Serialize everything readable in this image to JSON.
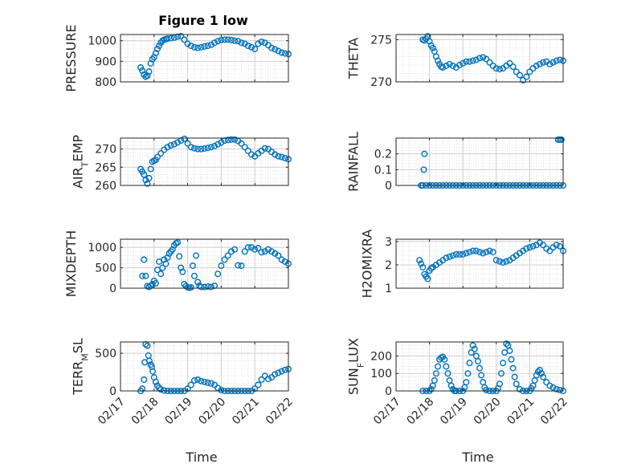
{
  "figure": {
    "title": "Figure 1 low",
    "xlabel": "Time",
    "marker_color": "#0072BD",
    "x_ticks": [
      "02/17",
      "02/18",
      "02/19",
      "02/20",
      "02/21",
      "02/22"
    ]
  },
  "chart_data": [
    {
      "type": "scatter",
      "name": "PRESSURE",
      "ylabel": "PRESSURE",
      "title": "Figure 1 low",
      "xlim": [
        0,
        5
      ],
      "ylim": [
        800,
        1030
      ],
      "yticks": [
        800,
        900,
        1000
      ],
      "x": [
        0.6,
        0.65,
        0.7,
        0.75,
        0.8,
        0.85,
        0.9,
        0.95,
        1.0,
        1.05,
        1.1,
        1.15,
        1.2,
        1.25,
        1.3,
        1.35,
        1.4,
        1.5,
        1.6,
        1.7,
        1.8,
        1.9,
        2.0,
        2.1,
        2.2,
        2.3,
        2.4,
        2.5,
        2.6,
        2.7,
        2.8,
        2.9,
        3.0,
        3.1,
        3.2,
        3.3,
        3.4,
        3.5,
        3.6,
        3.7,
        3.8,
        3.9,
        4.0,
        4.1,
        4.2,
        4.3,
        4.4,
        4.5,
        4.6,
        4.7,
        4.8,
        4.9,
        5.0
      ],
      "y": [
        870,
        855,
        835,
        825,
        830,
        850,
        890,
        910,
        920,
        940,
        960,
        975,
        990,
        1000,
        1005,
        1008,
        1010,
        1012,
        1015,
        1020,
        1022,
        1005,
        985,
        975,
        968,
        965,
        968,
        972,
        975,
        980,
        990,
        998,
        1003,
        1005,
        1005,
        1003,
        1000,
        998,
        990,
        985,
        975,
        968,
        960,
        985,
        995,
        990,
        978,
        965,
        958,
        950,
        942,
        938,
        935
      ]
    },
    {
      "type": "scatter",
      "name": "THETA",
      "ylabel": "THETA",
      "xlim": [
        0,
        5
      ],
      "ylim": [
        270,
        275.6
      ],
      "yticks": [
        270,
        275
      ],
      "x": [
        0.8,
        0.85,
        0.9,
        0.95,
        1.0,
        1.05,
        1.1,
        1.15,
        1.2,
        1.25,
        1.3,
        1.35,
        1.4,
        1.5,
        1.6,
        1.7,
        1.8,
        1.9,
        2.0,
        2.1,
        2.2,
        2.3,
        2.4,
        2.5,
        2.6,
        2.7,
        2.8,
        2.9,
        3.0,
        3.1,
        3.2,
        3.3,
        3.4,
        3.5,
        3.6,
        3.7,
        3.8,
        3.9,
        4.0,
        4.1,
        4.2,
        4.3,
        4.4,
        4.5,
        4.6,
        4.7,
        4.8,
        4.9,
        5.0
      ],
      "y": [
        275,
        274.9,
        275.1,
        275.4,
        274.8,
        274.3,
        274.0,
        273.6,
        273.0,
        272.5,
        272.1,
        271.8,
        271.7,
        271.9,
        272.1,
        271.9,
        271.7,
        272.0,
        272.2,
        272.4,
        272.4,
        272.5,
        272.6,
        272.8,
        272.9,
        272.7,
        272.3,
        271.9,
        271.6,
        271.5,
        271.6,
        271.9,
        272.2,
        271.8,
        271.2,
        270.8,
        270.2,
        270.6,
        271.2,
        271.6,
        271.9,
        272.1,
        272.3,
        272.4,
        272.1,
        272.3,
        272.5,
        272.6,
        272.5
      ]
    },
    {
      "type": "scatter",
      "name": "AIR_TEMP",
      "ylabel": "AIR_TEMP",
      "xlim": [
        0,
        5
      ],
      "ylim": [
        260,
        273
      ],
      "yticks": [
        260,
        265,
        270
      ],
      "x": [
        0.6,
        0.65,
        0.7,
        0.75,
        0.8,
        0.85,
        0.9,
        0.95,
        1.0,
        1.05,
        1.1,
        1.2,
        1.3,
        1.4,
        1.5,
        1.6,
        1.7,
        1.8,
        1.9,
        2.0,
        2.1,
        2.2,
        2.3,
        2.4,
        2.5,
        2.6,
        2.7,
        2.8,
        2.9,
        3.0,
        3.1,
        3.2,
        3.3,
        3.4,
        3.5,
        3.6,
        3.7,
        3.8,
        3.9,
        4.0,
        4.1,
        4.2,
        4.3,
        4.4,
        4.5,
        4.6,
        4.7,
        4.8,
        4.9,
        5.0
      ],
      "y": [
        264.5,
        263.8,
        263.0,
        261.5,
        260.5,
        262.0,
        264.5,
        266.5,
        266.8,
        267.0,
        267.8,
        268.8,
        269.8,
        270.5,
        271.0,
        271.3,
        271.8,
        272.3,
        272.8,
        271.5,
        270.5,
        270.2,
        270.0,
        270.0,
        270.1,
        270.3,
        270.5,
        270.8,
        271.3,
        271.8,
        272.3,
        272.5,
        272.6,
        272.6,
        272.2,
        271.5,
        270.5,
        269.5,
        268.5,
        268.0,
        268.8,
        269.5,
        270.2,
        270.0,
        269.2,
        268.5,
        268.0,
        267.8,
        267.5,
        267.2
      ]
    },
    {
      "type": "scatter",
      "name": "RAINFALL",
      "ylabel": "RAINFALL",
      "xlim": [
        0,
        5
      ],
      "ylim": [
        0,
        0.3
      ],
      "yticks": [
        0,
        0.1,
        0.2
      ],
      "x": [
        0.75,
        0.8,
        0.9,
        1.0,
        1.1,
        1.2,
        1.3,
        1.4,
        1.5,
        1.6,
        1.7,
        1.8,
        1.9,
        2.0,
        2.1,
        2.2,
        2.3,
        2.4,
        2.5,
        2.6,
        2.7,
        2.8,
        2.9,
        3.0,
        3.1,
        3.2,
        3.3,
        3.4,
        3.5,
        3.6,
        3.7,
        3.8,
        3.9,
        4.0,
        4.1,
        4.2,
        4.3,
        4.4,
        4.5,
        4.6,
        4.7,
        4.8,
        4.9,
        5.0,
        4.85,
        4.9,
        4.95,
        0.83,
        0.85
      ],
      "y": [
        0,
        0,
        0,
        0,
        0,
        0,
        0,
        0,
        0,
        0,
        0,
        0,
        0,
        0,
        0,
        0,
        0,
        0,
        0,
        0,
        0,
        0,
        0,
        0,
        0,
        0,
        0,
        0,
        0,
        0,
        0,
        0,
        0,
        0,
        0,
        0,
        0,
        0,
        0,
        0,
        0,
        0,
        0,
        0,
        0.29,
        0.29,
        0.29,
        0.1,
        0.2
      ]
    },
    {
      "type": "scatter",
      "name": "MIXDEPTH",
      "ylabel": "MIXDEPTH",
      "xlim": [
        0,
        5
      ],
      "ylim": [
        0,
        1200
      ],
      "yticks": [
        0,
        500,
        1000
      ],
      "x": [
        0.65,
        0.7,
        0.75,
        0.8,
        0.85,
        0.9,
        0.95,
        1.0,
        1.05,
        1.1,
        1.15,
        1.2,
        1.25,
        1.3,
        1.35,
        1.4,
        1.45,
        1.5,
        1.55,
        1.6,
        1.65,
        1.7,
        1.75,
        1.8,
        1.85,
        1.9,
        1.95,
        2.0,
        2.05,
        2.1,
        2.15,
        2.2,
        2.25,
        2.3,
        2.35,
        2.4,
        2.5,
        2.6,
        2.7,
        2.8,
        2.9,
        3.0,
        3.1,
        3.2,
        3.3,
        3.4,
        3.5,
        3.6,
        3.7,
        3.8,
        3.9,
        4.0,
        4.1,
        4.2,
        4.3,
        4.4,
        4.5,
        4.6,
        4.7,
        4.8,
        4.9,
        5.0
      ],
      "y": [
        300,
        700,
        300,
        50,
        30,
        60,
        100,
        180,
        120,
        450,
        650,
        350,
        500,
        700,
        600,
        750,
        850,
        900,
        950,
        1050,
        1100,
        1120,
        780,
        500,
        400,
        100,
        50,
        20,
        10,
        20,
        550,
        300,
        800,
        150,
        60,
        30,
        30,
        40,
        30,
        60,
        350,
        550,
        700,
        800,
        900,
        950,
        560,
        550,
        900,
        1000,
        1000,
        950,
        980,
        880,
        900,
        950,
        900,
        850,
        800,
        700,
        650,
        600
      ]
    },
    {
      "type": "scatter",
      "name": "H2OMIXRA",
      "ylabel": "H2OMIXRA",
      "xlim": [
        0,
        5
      ],
      "ylim": [
        1,
        3.1
      ],
      "yticks": [
        1,
        2,
        3
      ],
      "x": [
        0.7,
        0.75,
        0.8,
        0.85,
        0.9,
        0.95,
        1.0,
        1.05,
        1.1,
        1.2,
        1.3,
        1.4,
        1.5,
        1.6,
        1.7,
        1.8,
        1.9,
        2.0,
        2.1,
        2.2,
        2.3,
        2.4,
        2.5,
        2.6,
        2.7,
        2.8,
        2.9,
        3.0,
        3.1,
        3.2,
        3.3,
        3.4,
        3.5,
        3.6,
        3.7,
        3.8,
        3.9,
        4.0,
        4.1,
        4.2,
        4.3,
        4.4,
        4.5,
        4.6,
        4.7,
        4.8,
        4.9,
        5.0
      ],
      "y": [
        2.2,
        2.05,
        1.9,
        1.6,
        1.5,
        1.4,
        1.75,
        1.85,
        1.9,
        2.0,
        2.1,
        2.2,
        2.3,
        2.35,
        2.4,
        2.45,
        2.45,
        2.45,
        2.5,
        2.55,
        2.6,
        2.6,
        2.55,
        2.5,
        2.55,
        2.6,
        2.55,
        2.2,
        2.15,
        2.1,
        2.15,
        2.2,
        2.3,
        2.4,
        2.5,
        2.6,
        2.7,
        2.75,
        2.8,
        2.85,
        2.95,
        2.85,
        2.7,
        2.6,
        2.75,
        2.85,
        2.8,
        2.6
      ]
    },
    {
      "type": "scatter",
      "name": "TERR_MSL",
      "ylabel": "TERR_MSL",
      "xlim": [
        0,
        5
      ],
      "ylim": [
        0,
        650
      ],
      "yticks": [
        0,
        500
      ],
      "x": [
        0.6,
        0.65,
        0.7,
        0.72,
        0.75,
        0.8,
        0.83,
        0.86,
        0.9,
        0.93,
        0.96,
        1.0,
        1.05,
        1.1,
        1.15,
        1.2,
        1.3,
        1.4,
        1.5,
        1.6,
        1.7,
        1.8,
        1.9,
        2.0,
        2.1,
        2.2,
        2.3,
        2.4,
        2.5,
        2.6,
        2.7,
        2.8,
        2.9,
        3.0,
        3.1,
        3.2,
        3.3,
        3.4,
        3.5,
        3.6,
        3.7,
        3.8,
        3.9,
        4.0,
        4.1,
        4.2,
        4.3,
        4.4,
        4.5,
        4.6,
        4.7,
        4.8,
        4.9,
        5.0
      ],
      "y": [
        0,
        30,
        150,
        380,
        620,
        600,
        470,
        400,
        350,
        320,
        260,
        180,
        120,
        70,
        40,
        20,
        5,
        0,
        0,
        0,
        0,
        0,
        0,
        30,
        80,
        140,
        150,
        130,
        120,
        110,
        100,
        80,
        40,
        10,
        0,
        0,
        0,
        0,
        0,
        0,
        0,
        0,
        0,
        30,
        80,
        150,
        200,
        160,
        180,
        220,
        240,
        260,
        280,
        290
      ]
    },
    {
      "type": "scatter",
      "name": "SUN_FLUX",
      "ylabel": "SUN_FLUX",
      "xlim": [
        0,
        5
      ],
      "ylim": [
        0,
        280
      ],
      "yticks": [
        0,
        100,
        200
      ],
      "x": [
        0.8,
        0.9,
        1.0,
        1.05,
        1.1,
        1.15,
        1.2,
        1.25,
        1.3,
        1.35,
        1.4,
        1.45,
        1.5,
        1.55,
        1.6,
        1.65,
        1.7,
        1.75,
        1.8,
        1.9,
        2.0,
        2.05,
        2.1,
        2.15,
        2.2,
        2.25,
        2.3,
        2.35,
        2.4,
        2.45,
        2.5,
        2.55,
        2.6,
        2.65,
        2.7,
        2.8,
        2.9,
        3.0,
        3.05,
        3.1,
        3.15,
        3.2,
        3.25,
        3.3,
        3.35,
        3.4,
        3.45,
        3.5,
        3.55,
        3.6,
        3.7,
        3.8,
        3.9,
        4.0,
        4.05,
        4.1,
        4.15,
        4.2,
        4.25,
        4.3,
        4.35,
        4.4,
        4.5,
        4.6,
        4.7,
        4.8,
        4.9,
        5.0
      ],
      "y": [
        0,
        0,
        0,
        10,
        30,
        60,
        100,
        140,
        180,
        190,
        195,
        180,
        140,
        100,
        60,
        30,
        10,
        0,
        0,
        0,
        0,
        20,
        50,
        100,
        160,
        220,
        260,
        240,
        200,
        170,
        130,
        90,
        50,
        20,
        5,
        0,
        0,
        0,
        15,
        40,
        100,
        160,
        220,
        270,
        260,
        230,
        180,
        130,
        80,
        40,
        10,
        0,
        0,
        0,
        15,
        30,
        60,
        90,
        110,
        120,
        100,
        80,
        50,
        30,
        20,
        10,
        5,
        0
      ]
    }
  ]
}
